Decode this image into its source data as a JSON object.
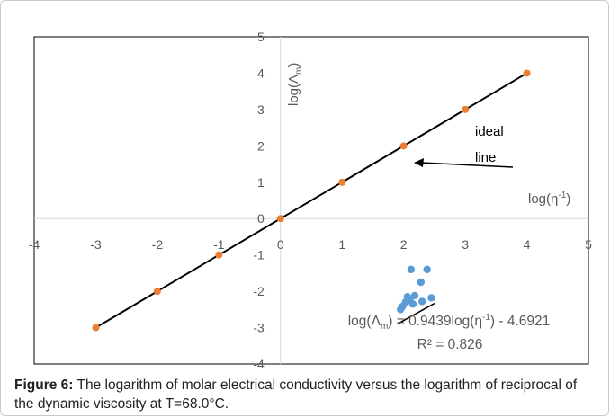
{
  "chart_data": {
    "type": "scatter",
    "xlim": [
      -4,
      5
    ],
    "ylim": [
      -4,
      5
    ],
    "xticks": [
      -4,
      -3,
      -2,
      -1,
      0,
      1,
      2,
      3,
      4,
      5
    ],
    "yticks": [
      -4,
      -3,
      -2,
      -1,
      0,
      1,
      2,
      3,
      4,
      5
    ],
    "grid": false,
    "x_label_parts": [
      "log(η",
      "-1",
      ")"
    ],
    "y_label_parts": [
      "log(Λ",
      "m",
      ")"
    ],
    "series": [
      {
        "color": "#ed7d31",
        "line_color": "#000000",
        "points": [
          [
            -3,
            -3
          ],
          [
            -2,
            -2
          ],
          [
            -1,
            -1
          ],
          [
            0,
            0
          ],
          [
            1,
            1
          ],
          [
            2,
            2
          ],
          [
            3,
            3
          ],
          [
            4,
            4
          ]
        ]
      },
      {
        "color": "#5b9bd5",
        "points": [
          [
            1.95,
            -2.5
          ],
          [
            1.98,
            -2.42
          ],
          [
            2.03,
            -2.3
          ],
          [
            2.1,
            -2.25
          ],
          [
            2.06,
            -2.15
          ],
          [
            2.18,
            -2.12
          ],
          [
            2.12,
            -1.4
          ],
          [
            2.38,
            -1.4
          ],
          [
            2.28,
            -1.75
          ],
          [
            2.3,
            -2.28
          ],
          [
            2.45,
            -2.18
          ],
          [
            2.15,
            -2.35
          ]
        ]
      }
    ],
    "trendline": {
      "slope": 0.9439,
      "intercept": -4.6921,
      "x_range": [
        1.9,
        2.5
      ],
      "color": "#000000"
    },
    "annotations": {
      "ideal_line_text": [
        "ideal",
        "line"
      ],
      "equation_parts": [
        "log(Λ",
        "m",
        ") = 0.9439log(η",
        "-1",
        ") - 4.6921"
      ],
      "r2": "R² = 0.826"
    }
  },
  "caption": {
    "label": "Figure 6:",
    "text": "The logarithm of molar electrical conductivity versus the logarithm of reciprocal of the dynamic viscosity at T=68.0°C."
  }
}
